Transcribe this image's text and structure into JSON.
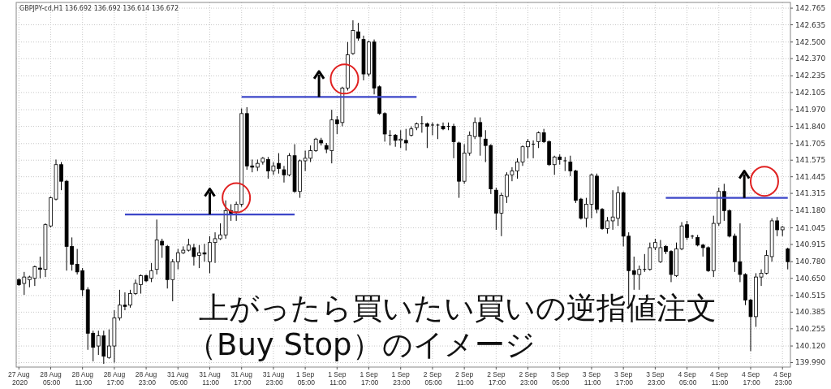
{
  "chart_data": {
    "type": "candlestick",
    "title": "GBPJPY-cd,H1  136.692 136.692 136.614 136.672",
    "categories": [
      "27 Aug 2020",
      null,
      null,
      null,
      null,
      null,
      "28 Aug 05:00",
      null,
      null,
      null,
      null,
      null,
      "28 Aug 11:00",
      null,
      null,
      null,
      null,
      null,
      "28 Aug 17:00",
      null,
      null,
      null,
      null,
      null,
      "28 Aug 23:00",
      null,
      null,
      null,
      null,
      null,
      "31 Aug 05:00",
      null,
      null,
      null,
      null,
      null,
      "31 Aug 11:00",
      null,
      null,
      null,
      null,
      null,
      "31 Aug 17:00",
      null,
      null,
      null,
      null,
      null,
      "31 Aug 23:00",
      null,
      null,
      null,
      null,
      null,
      "1 Sep 05:00",
      null,
      null,
      null,
      null,
      null,
      "1 Sep 11:00",
      null,
      null,
      null,
      null,
      null,
      "1 Sep 17:00",
      null,
      null,
      null,
      null,
      null,
      "1 Sep 23:00",
      null,
      null,
      null,
      null,
      null,
      "2 Sep 05:00",
      null,
      null,
      null,
      null,
      null,
      "2 Sep 11:00",
      null,
      null,
      null,
      null,
      null,
      "2 Sep 17:00",
      null,
      null,
      null,
      null,
      null,
      "2 Sep 23:00",
      null,
      null,
      null,
      null,
      null,
      "3 Sep 05:00",
      null,
      null,
      null,
      null,
      null,
      "3 Sep 11:00",
      null,
      null,
      null,
      null,
      null,
      "3 Sep 17:00",
      null,
      null,
      null,
      null,
      null,
      "3 Sep 23:00",
      null,
      null,
      null,
      null,
      null,
      "4 Sep 05:00",
      null,
      null,
      null,
      null,
      null,
      "4 Sep 11:00",
      null,
      null,
      null,
      null,
      null,
      "4 Sep 17:00",
      null,
      null,
      null,
      null,
      null,
      "4 Sep 23:00",
      null
    ],
    "ohlc": [
      [
        140.64,
        140.65,
        140.59,
        140.6
      ],
      [
        140.61,
        140.7,
        140.52,
        140.66
      ],
      [
        140.64,
        140.67,
        140.58,
        140.66
      ],
      [
        140.65,
        140.75,
        140.59,
        140.74
      ],
      [
        140.73,
        140.82,
        140.65,
        140.72
      ],
      [
        140.72,
        141.08,
        140.66,
        141.07
      ],
      [
        141.06,
        141.29,
        141.05,
        141.28
      ],
      [
        141.27,
        141.58,
        141.26,
        141.54
      ],
      [
        141.54,
        141.56,
        141.34,
        141.41
      ],
      [
        141.41,
        141.42,
        140.71,
        140.9
      ],
      [
        140.9,
        140.97,
        140.71,
        140.76
      ],
      [
        140.76,
        140.88,
        140.68,
        140.7
      ],
      [
        140.71,
        140.73,
        140.51,
        140.56
      ],
      [
        140.56,
        140.58,
        140.09,
        140.22
      ],
      [
        140.22,
        140.24,
        140.0,
        140.11
      ],
      [
        140.12,
        140.24,
        140.05,
        140.2
      ],
      [
        140.2,
        140.24,
        139.98,
        140.04
      ],
      [
        140.03,
        140.25,
        140.02,
        140.12
      ],
      [
        140.12,
        140.4,
        139.99,
        140.34
      ],
      [
        140.34,
        140.56,
        140.32,
        140.44
      ],
      [
        140.44,
        140.54,
        140.4,
        140.43
      ],
      [
        140.44,
        140.56,
        140.42,
        140.53
      ],
      [
        140.53,
        140.64,
        140.52,
        140.61
      ],
      [
        140.6,
        140.68,
        140.53,
        140.67
      ],
      [
        140.67,
        140.68,
        140.62,
        140.63
      ],
      [
        140.65,
        140.77,
        140.62,
        140.71
      ],
      [
        140.72,
        141.11,
        140.68,
        140.95
      ],
      [
        140.94,
        140.96,
        140.81,
        140.91
      ],
      [
        140.9,
        140.91,
        140.57,
        140.64
      ],
      [
        140.64,
        140.8,
        140.47,
        140.78
      ],
      [
        140.78,
        140.88,
        140.72,
        140.85
      ],
      [
        140.85,
        140.9,
        140.84,
        140.87
      ],
      [
        140.87,
        140.96,
        140.86,
        140.91
      ],
      [
        140.89,
        140.92,
        140.75,
        140.82
      ],
      [
        140.83,
        140.91,
        140.73,
        140.85
      ],
      [
        140.85,
        140.92,
        140.78,
        140.84
      ],
      [
        140.78,
        140.98,
        140.69,
        140.93
      ],
      [
        140.93,
        141.01,
        140.77,
        140.96
      ],
      [
        140.96,
        141.08,
        140.95,
        140.99
      ],
      [
        140.99,
        141.26,
        140.96,
        141.18
      ],
      [
        141.18,
        141.23,
        141.1,
        141.16
      ],
      [
        141.17,
        141.25,
        141.1,
        141.23
      ],
      [
        141.23,
        141.98,
        141.21,
        141.94
      ],
      [
        141.94,
        141.99,
        141.5,
        141.53
      ],
      [
        141.53,
        141.58,
        141.48,
        141.52
      ],
      [
        141.52,
        141.58,
        141.49,
        141.55
      ],
      [
        141.56,
        141.6,
        141.54,
        141.59
      ],
      [
        141.58,
        141.6,
        141.43,
        141.49
      ],
      [
        141.49,
        141.56,
        141.46,
        141.53
      ],
      [
        141.55,
        141.63,
        141.47,
        141.51
      ],
      [
        141.5,
        141.53,
        141.4,
        141.46
      ],
      [
        141.46,
        141.63,
        141.45,
        141.61
      ],
      [
        141.61,
        141.7,
        141.32,
        141.33
      ],
      [
        141.33,
        141.58,
        141.28,
        141.57
      ],
      [
        141.57,
        141.65,
        141.49,
        141.59
      ],
      [
        141.59,
        141.69,
        141.56,
        141.65
      ],
      [
        141.65,
        141.75,
        141.64,
        141.74
      ],
      [
        141.73,
        141.75,
        141.69,
        141.71
      ],
      [
        141.69,
        141.71,
        141.63,
        141.66
      ],
      [
        141.65,
        141.97,
        141.55,
        141.89
      ],
      [
        141.89,
        141.92,
        141.78,
        141.86
      ],
      [
        141.87,
        142.15,
        141.84,
        142.14
      ],
      [
        142.14,
        142.5,
        142.12,
        142.4
      ],
      [
        142.41,
        142.67,
        142.4,
        142.59
      ],
      [
        142.58,
        142.65,
        142.51,
        142.53
      ],
      [
        142.52,
        142.55,
        142.2,
        142.25
      ],
      [
        142.25,
        142.51,
        142.23,
        142.5
      ],
      [
        142.5,
        142.52,
        142.09,
        142.14
      ],
      [
        142.15,
        142.16,
        141.93,
        141.94
      ],
      [
        141.94,
        141.95,
        141.72,
        141.78
      ],
      [
        141.77,
        141.81,
        141.69,
        141.77
      ],
      [
        141.77,
        141.78,
        141.68,
        141.73
      ],
      [
        141.73,
        141.81,
        141.67,
        141.74
      ],
      [
        141.73,
        141.82,
        141.65,
        141.71
      ],
      [
        141.77,
        141.84,
        141.76,
        141.82
      ],
      [
        141.83,
        141.87,
        141.81,
        141.86
      ],
      [
        141.86,
        141.92,
        141.79,
        141.86
      ],
      [
        141.86,
        141.87,
        141.67,
        141.84
      ],
      [
        141.85,
        141.87,
        141.77,
        141.85
      ],
      [
        141.85,
        141.86,
        141.74,
        141.85
      ],
      [
        141.84,
        141.87,
        141.81,
        141.82
      ],
      [
        141.84,
        141.87,
        141.81,
        141.84
      ],
      [
        141.84,
        141.86,
        141.59,
        141.72
      ],
      [
        141.71,
        141.72,
        141.28,
        141.41
      ],
      [
        141.41,
        141.7,
        141.39,
        141.63
      ],
      [
        141.63,
        141.8,
        141.61,
        141.77
      ],
      [
        141.76,
        141.91,
        141.74,
        141.87
      ],
      [
        141.87,
        141.91,
        141.61,
        141.76
      ],
      [
        141.74,
        141.81,
        141.56,
        141.69
      ],
      [
        141.69,
        141.7,
        141.31,
        141.35
      ],
      [
        141.34,
        141.36,
        141.03,
        141.16
      ],
      [
        141.16,
        141.32,
        140.98,
        141.3
      ],
      [
        141.29,
        141.48,
        141.24,
        141.46
      ],
      [
        141.46,
        141.52,
        141.41,
        141.49
      ],
      [
        141.49,
        141.59,
        141.43,
        141.56
      ],
      [
        141.56,
        141.69,
        141.53,
        141.68
      ],
      [
        141.68,
        141.74,
        141.59,
        141.72
      ],
      [
        141.7,
        141.73,
        141.59,
        141.7
      ],
      [
        141.72,
        141.8,
        141.67,
        141.79
      ],
      [
        141.79,
        141.82,
        141.71,
        141.72
      ],
      [
        141.72,
        141.73,
        141.53,
        141.54
      ],
      [
        141.54,
        141.61,
        141.46,
        141.6
      ],
      [
        141.6,
        141.62,
        141.54,
        141.58
      ],
      [
        141.57,
        141.6,
        141.49,
        141.57
      ],
      [
        141.56,
        141.61,
        141.45,
        141.49
      ],
      [
        141.49,
        141.5,
        141.24,
        141.26
      ],
      [
        141.27,
        141.28,
        141.11,
        141.12
      ],
      [
        141.12,
        141.28,
        141.05,
        141.23
      ],
      [
        141.23,
        141.47,
        141.12,
        141.46
      ],
      [
        141.45,
        141.47,
        141.16,
        141.19
      ],
      [
        141.19,
        141.2,
        141.03,
        141.04
      ],
      [
        141.04,
        141.13,
        141.0,
        141.1
      ],
      [
        141.1,
        141.34,
        141.03,
        141.13
      ],
      [
        141.12,
        141.37,
        141.06,
        141.32
      ],
      [
        141.32,
        141.33,
        140.9,
        140.98
      ],
      [
        140.98,
        141.01,
        140.44,
        140.71
      ],
      [
        140.71,
        140.82,
        140.56,
        140.68
      ],
      [
        140.68,
        140.75,
        140.56,
        140.72
      ],
      [
        140.72,
        140.84,
        140.7,
        140.72
      ],
      [
        140.72,
        140.93,
        140.71,
        140.89
      ],
      [
        140.89,
        140.96,
        140.87,
        140.93
      ],
      [
        140.78,
        140.95,
        140.77,
        140.89
      ],
      [
        140.9,
        140.91,
        140.84,
        140.86
      ],
      [
        140.86,
        140.87,
        140.62,
        140.68
      ],
      [
        140.67,
        140.93,
        140.66,
        140.88
      ],
      [
        140.88,
        141.09,
        140.87,
        141.06
      ],
      [
        141.07,
        141.1,
        140.95,
        140.97
      ],
      [
        140.98,
        140.99,
        140.96,
        140.98
      ],
      [
        140.97,
        140.99,
        140.9,
        140.91
      ],
      [
        140.91,
        140.92,
        140.82,
        140.89
      ],
      [
        140.89,
        140.9,
        140.7,
        140.71
      ],
      [
        140.71,
        141.14,
        140.66,
        141.08
      ],
      [
        141.08,
        141.36,
        141.06,
        141.33
      ],
      [
        141.33,
        141.39,
        141.1,
        141.18
      ],
      [
        141.18,
        141.19,
        140.97,
        140.98
      ],
      [
        140.98,
        141.0,
        140.7,
        140.78
      ],
      [
        140.78,
        141.08,
        140.62,
        140.68
      ],
      [
        140.68,
        140.69,
        140.44,
        140.48
      ],
      [
        140.48,
        140.49,
        140.08,
        140.35
      ],
      [
        140.35,
        140.69,
        140.27,
        140.66
      ],
      [
        140.66,
        140.72,
        140.59,
        140.69
      ],
      [
        140.69,
        140.87,
        140.68,
        140.83
      ],
      [
        140.82,
        141.12,
        140.78,
        141.1
      ],
      [
        141.1,
        141.13,
        140.98,
        141.03
      ],
      [
        141.03,
        141.06,
        140.98,
        141.05
      ],
      [
        140.88,
        140.89,
        140.72,
        140.78
      ]
    ],
    "series": [
      {
        "type": "line",
        "color": "#3c46c8",
        "values": [
          null,
          null,
          null,
          null,
          null,
          null,
          null,
          null,
          null,
          null,
          null,
          null,
          null,
          null,
          null,
          null,
          null,
          null,
          null,
          null,
          141.15,
          141.15,
          141.15,
          141.15,
          141.15,
          141.15,
          141.15,
          141.15,
          141.15,
          141.15,
          141.15,
          141.15,
          141.15,
          141.15,
          141.15,
          141.15,
          141.15,
          141.15,
          141.15,
          141.15,
          141.15,
          141.15,
          141.15,
          141.15,
          141.15,
          141.15,
          141.15,
          141.15,
          141.15,
          141.15,
          141.15,
          141.15,
          141.15,
          null,
          null,
          null,
          null,
          null,
          null,
          null,
          null,
          null,
          null,
          null,
          null,
          null,
          null,
          null,
          null,
          null,
          null,
          null,
          null,
          null,
          null,
          null,
          null,
          null,
          null,
          null,
          null,
          null,
          null,
          null,
          null,
          null,
          null,
          null,
          null,
          null,
          null,
          null,
          null,
          null,
          null,
          null,
          null,
          null,
          null,
          null,
          null,
          null,
          null,
          null,
          null,
          null,
          null,
          null,
          null,
          null,
          null,
          null,
          null,
          null,
          null,
          null,
          null,
          null,
          null,
          null,
          null,
          null,
          null,
          null,
          null,
          null,
          null,
          null,
          null,
          null,
          null,
          null,
          null,
          null,
          null,
          null,
          null,
          null,
          null,
          null,
          null,
          null,
          null,
          null,
          null,
          null
        ]
      },
      {
        "type": "line",
        "color": "#3c46c8",
        "values": [
          null,
          null,
          null,
          null,
          null,
          null,
          null,
          null,
          null,
          null,
          null,
          null,
          null,
          null,
          null,
          null,
          null,
          null,
          null,
          null,
          null,
          null,
          null,
          null,
          null,
          null,
          null,
          null,
          null,
          null,
          null,
          null,
          null,
          null,
          null,
          null,
          null,
          null,
          null,
          null,
          null,
          null,
          142.07,
          142.07,
          142.07,
          142.07,
          142.07,
          142.07,
          142.07,
          142.07,
          142.07,
          142.07,
          142.07,
          142.07,
          142.07,
          142.07,
          142.07,
          142.07,
          142.07,
          142.07,
          142.07,
          142.07,
          142.07,
          142.07,
          142.07,
          142.07,
          142.07,
          142.07,
          142.07,
          142.07,
          142.07,
          142.07,
          142.07,
          142.07,
          142.07,
          142.07,
          null,
          null,
          null,
          null,
          null,
          null,
          null,
          null,
          null,
          null,
          null,
          null,
          null,
          null,
          null,
          null,
          null,
          null,
          null,
          null,
          null,
          null,
          null,
          null,
          null,
          null,
          null,
          null,
          null,
          null,
          null,
          null,
          null,
          null,
          null,
          null,
          null,
          null,
          null,
          null,
          null,
          null,
          null,
          null,
          null,
          null,
          null,
          null,
          null,
          null,
          null,
          null,
          null,
          null,
          null,
          null,
          null,
          null,
          null,
          null,
          null,
          null,
          null,
          null,
          null,
          null,
          null,
          null,
          null,
          null
        ]
      },
      {
        "type": "line",
        "color": "#3c46c8",
        "values": [
          null,
          null,
          null,
          null,
          null,
          null,
          null,
          null,
          null,
          null,
          null,
          null,
          null,
          null,
          null,
          null,
          null,
          null,
          null,
          null,
          null,
          null,
          null,
          null,
          null,
          null,
          null,
          null,
          null,
          null,
          null,
          null,
          null,
          null,
          null,
          null,
          null,
          null,
          null,
          null,
          null,
          null,
          null,
          null,
          null,
          null,
          null,
          null,
          null,
          null,
          null,
          null,
          null,
          null,
          null,
          null,
          null,
          null,
          null,
          null,
          null,
          null,
          null,
          null,
          null,
          null,
          null,
          null,
          null,
          null,
          null,
          null,
          null,
          null,
          null,
          null,
          null,
          null,
          null,
          null,
          null,
          null,
          null,
          null,
          null,
          null,
          null,
          null,
          null,
          null,
          null,
          null,
          null,
          null,
          null,
          null,
          null,
          null,
          null,
          null,
          null,
          null,
          null,
          null,
          null,
          null,
          null,
          null,
          null,
          null,
          null,
          null,
          null,
          null,
          null,
          null,
          null,
          null,
          null,
          null,
          null,
          null,
          141.28,
          141.28,
          141.28,
          141.28,
          141.28,
          141.28,
          141.28,
          141.28,
          141.28,
          141.28,
          141.28,
          141.28,
          141.28,
          141.28,
          141.28,
          141.28,
          141.28,
          141.28,
          141.28,
          141.28,
          141.28,
          141.28,
          141.28,
          141.28
        ]
      }
    ],
    "ylim": [
      139.955,
      142.81
    ],
    "yticks": [
      {
        "value": 139.99,
        "label": "139.990"
      },
      {
        "value": 140.12,
        "label": "140.120"
      },
      140.255,
      140.385,
      140.515,
      {
        "value": 140.65,
        "label": "140.650"
      },
      {
        "value": 140.78,
        "label": "140.780"
      },
      140.915,
      141.045,
      {
        "value": 141.18,
        "label": "141.180"
      },
      141.315,
      141.445,
      141.575,
      141.705,
      {
        "value": 141.84,
        "label": "141.840"
      },
      {
        "value": 141.97,
        "label": "141.970"
      },
      142.105,
      142.235,
      {
        "value": 142.37,
        "label": "142.370"
      },
      {
        "value": 142.5,
        "label": "142.500"
      },
      142.635,
      142.765
    ],
    "grid": true,
    "annotations": [
      "上がったら買いたい買いの逆指値注文",
      "（Buy Stop）のイメージ"
    ]
  }
}
